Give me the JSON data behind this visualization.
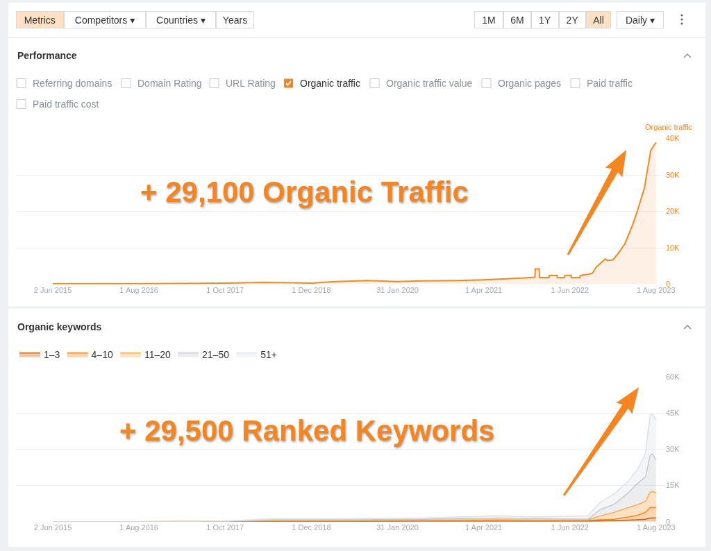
{
  "chart_data": [
    {
      "type": "area",
      "title": "Performance",
      "ylabel": "Organic traffic",
      "annotations": [
        "Metrics",
        "Competitors ▾",
        "Countries ▾",
        "Years",
        "1M",
        "6M",
        "1Y",
        "2Y",
        "All",
        "Daily ▾",
        "Referring domains",
        "Domain Rating",
        "URL Rating",
        "Organic traffic",
        "Organic traffic value",
        "Organic pages",
        "Paid traffic",
        "Paid traffic cost",
        "+ 29,100 Organic Traffic"
      ],
      "x": [
        "2015-06-02",
        "2016-01-01",
        "2016-08-01",
        "2017-03-01",
        "2017-10-01",
        "2018-04-01",
        "2018-09-01",
        "2018-12-01",
        "2019-04-01",
        "2019-09-01",
        "2020-01-31",
        "2020-06-01",
        "2020-12-01",
        "2021-04-01",
        "2021-09-15",
        "2021-12-10",
        "2021-12-12",
        "2021-12-31",
        "2022-01-02",
        "2022-02-18",
        "2022-02-19",
        "2022-03-30",
        "2022-03-31",
        "2022-05-06",
        "2022-05-07",
        "2022-06-07",
        "2022-06-08",
        "2022-07-21",
        "2022-07-22",
        "2022-09-01",
        "2022-09-21",
        "2022-10-08",
        "2022-11-22",
        "2022-12-05",
        "2023-01-01",
        "2023-01-30",
        "2023-02-27",
        "2023-04-08",
        "2023-05-01",
        "2023-06-05",
        "2023-06-16",
        "2023-07-06",
        "2023-07-20",
        "2023-08-01"
      ],
      "series": [
        {
          "color": "#f5871f",
          "values": [
            100,
            100,
            100,
            200,
            300,
            500,
            400,
            300,
            700,
            1000,
            700,
            900,
            1000,
            1200,
            1600,
            1900,
            4200,
            4200,
            1800,
            1800,
            2400,
            2400,
            1800,
            1800,
            2400,
            2400,
            1800,
            1800,
            2400,
            2700,
            3000,
            4600,
            6900,
            6500,
            6700,
            8800,
            11000,
            16400,
            20200,
            26500,
            30300,
            36700,
            38000,
            38900
          ]
        }
      ],
      "xlim": [
        "2014-12-02",
        "2023-09-15"
      ],
      "xticks": [
        {
          "value": "2015-06-02",
          "label": "2 Jun 2015"
        },
        {
          "value": "2016-08-01",
          "label": "1 Aug 2016"
        },
        {
          "value": "2017-10-01",
          "label": "1 Oct 2017"
        },
        {
          "value": "2018-12-01",
          "label": "1 Dec 2018"
        },
        {
          "value": "2020-01-31",
          "label": "31 Jan 2020"
        },
        {
          "value": "2021-04-01",
          "label": "1 Apr 2021"
        },
        {
          "value": "2022-06-01",
          "label": "1 Jun 2022"
        },
        {
          "value": "2023-08-01",
          "label": "1 Aug 2023"
        }
      ],
      "ylim": [
        0,
        40000
      ],
      "yticks": [
        0,
        {
          "value": 10000,
          "label": "10K"
        },
        {
          "value": 20000,
          "label": "20K"
        },
        {
          "value": 30000,
          "label": "30K"
        },
        {
          "value": 40000,
          "label": "40K"
        }
      ],
      "grid": "y"
    },
    {
      "type": "area",
      "stacked": true,
      "title": "Organic keywords",
      "legend": "top left",
      "annotations": [
        "+ 29,500 Ranked Keywords"
      ],
      "x": [
        "2015-06-02",
        "2016-08-01",
        "2017-10-01",
        "2018-06-01",
        "2019-06-01",
        "2020-06-01",
        "2021-06-01",
        "2022-01-01",
        "2022-08-29",
        "2022-10-31",
        "2023-01-07",
        "2023-03-17",
        "2023-05-01",
        "2023-06-10",
        "2023-06-19",
        "2023-07-03",
        "2023-07-14",
        "2023-08-01"
      ],
      "series": [
        {
          "name": "1–3",
          "color": "#c0620e",
          "values": [
            0,
            0,
            0,
            100,
            100,
            200,
            200,
            200,
            200,
            300,
            400,
            600,
            800,
            1000,
            1200,
            1500,
            1500,
            1500
          ]
        },
        {
          "name": "4–10",
          "color": "#f0861c",
          "values": [
            0,
            0,
            100,
            200,
            200,
            200,
            300,
            200,
            300,
            500,
            600,
            1300,
            1800,
            2900,
            3400,
            4300,
            4300,
            4300
          ]
        },
        {
          "name": "11–20",
          "color": "#f6aa52",
          "values": [
            0,
            0,
            0,
            200,
            200,
            200,
            300,
            300,
            300,
            1600,
            2900,
            3900,
            4400,
            4500,
            5400,
            6400,
            6700,
            6200
          ]
        },
        {
          "name": "21–50",
          "color": "#c5cad2",
          "values": [
            0,
            0,
            100,
            300,
            300,
            400,
            700,
            500,
            200,
            2700,
            3300,
            6200,
            8800,
            10300,
            12000,
            15300,
            15600,
            13600
          ]
        },
        {
          "name": "51+",
          "color": "#dde1e6",
          "values": [
            0,
            0,
            100,
            400,
            400,
            500,
            900,
            800,
            1400,
            3100,
            4300,
            4800,
            5800,
            9600,
            13000,
            16700,
            16500,
            16400
          ]
        }
      ],
      "xlim": [
        "2014-12-02",
        "2023-09-15"
      ],
      "xticks": [
        {
          "value": "2015-06-02",
          "label": "2 Jun 2015"
        },
        {
          "value": "2016-08-01",
          "label": "1 Aug 2016"
        },
        {
          "value": "2017-10-01",
          "label": "1 Oct 2017"
        },
        {
          "value": "2018-12-01",
          "label": "1 Dec 2018"
        },
        {
          "value": "2020-01-31",
          "label": "31 Jan 2020"
        },
        {
          "value": "2021-04-01",
          "label": "1 Apr 2021"
        },
        {
          "value": "2022-06-01",
          "label": "1 Jun 2022"
        },
        {
          "value": "2023-08-01",
          "label": "1 Aug 2023"
        }
      ],
      "ylim": [
        0,
        60000
      ],
      "yticks": [
        0,
        {
          "value": 15000,
          "label": "15K"
        },
        {
          "value": 30000,
          "label": "30K"
        },
        {
          "value": 45000,
          "label": "45K"
        },
        {
          "value": 60000,
          "label": "60K"
        }
      ],
      "grid": "y"
    }
  ]
}
